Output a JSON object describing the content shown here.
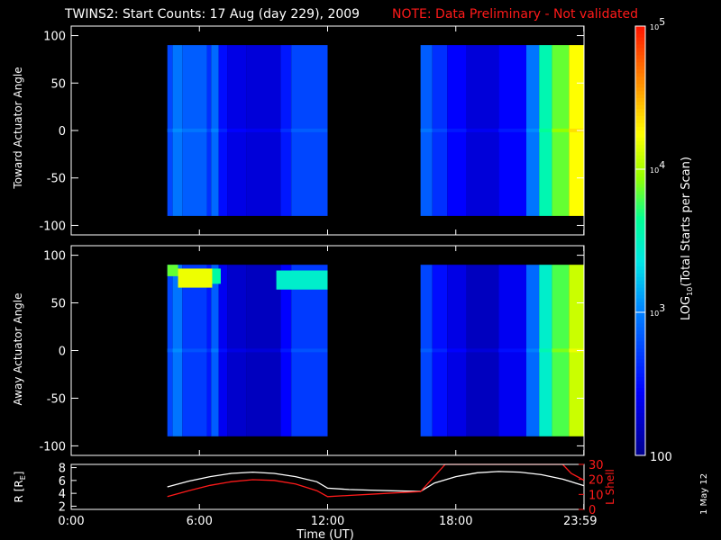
{
  "title": "TWINS2: Start Counts: 17 Aug (day 229), 2009",
  "note": "NOTE: Data Preliminary - Not validated",
  "date_stamp": "1 May 12",
  "colors": {
    "background": "#000000",
    "axes": "#ffffff",
    "note": "#ff1a1a",
    "r_line": "#ffffff",
    "lshell_line": "#ff1a1a"
  },
  "chart_data": [
    {
      "type": "heatmap",
      "ylabel": "Toward Actuator Angle",
      "ylim": [
        -110,
        110
      ],
      "xlim": [
        0,
        24
      ],
      "y_ticks": [
        "100",
        "50",
        "0",
        "-50",
        "-100"
      ],
      "y_tick_values": [
        100,
        50,
        0,
        -50,
        -100
      ],
      "angle_range": [
        -90,
        90
      ],
      "data_blocks": [
        {
          "t_start": 4.5,
          "t_end": 12.0
        },
        {
          "t_start": 16.35,
          "t_end": 23.99
        }
      ],
      "columns": [
        {
          "t0": 4.5,
          "t1": 4.75,
          "log_counts": 2.75
        },
        {
          "t0": 4.75,
          "t1": 5.2,
          "log_counts": 2.95
        },
        {
          "t0": 5.2,
          "t1": 6.35,
          "log_counts": 2.85
        },
        {
          "t0": 6.35,
          "t1": 6.55,
          "log_counts": 2.65
        },
        {
          "t0": 6.55,
          "t1": 6.9,
          "log_counts": 2.9
        },
        {
          "t0": 6.9,
          "t1": 7.3,
          "log_counts": 2.5
        },
        {
          "t0": 7.3,
          "t1": 8.2,
          "log_counts": 2.35
        },
        {
          "t0": 8.2,
          "t1": 9.8,
          "log_counts": 2.3
        },
        {
          "t0": 9.8,
          "t1": 10.3,
          "log_counts": 2.55
        },
        {
          "t0": 10.3,
          "t1": 12.0,
          "log_counts": 2.75
        },
        {
          "t0": 16.35,
          "t1": 16.9,
          "log_counts": 2.85
        },
        {
          "t0": 16.9,
          "t1": 17.6,
          "log_counts": 2.65
        },
        {
          "t0": 17.6,
          "t1": 18.5,
          "log_counts": 2.45
        },
        {
          "t0": 18.5,
          "t1": 20.0,
          "log_counts": 2.3
        },
        {
          "t0": 20.0,
          "t1": 21.3,
          "log_counts": 2.45
        },
        {
          "t0": 21.3,
          "t1": 21.9,
          "log_counts": 2.95
        },
        {
          "t0": 21.9,
          "t1": 22.5,
          "log_counts": 3.55
        },
        {
          "t0": 22.5,
          "t1": 23.3,
          "log_counts": 3.85
        },
        {
          "t0": 23.3,
          "t1": 23.99,
          "log_counts": 4.25
        }
      ]
    },
    {
      "type": "heatmap",
      "ylabel": "Away Actuator Angle",
      "ylim": [
        -110,
        110
      ],
      "xlim": [
        0,
        24
      ],
      "y_ticks": [
        "100",
        "50",
        "0",
        "-50",
        "-100"
      ],
      "y_tick_values": [
        100,
        50,
        0,
        -50,
        -100
      ],
      "angle_range": [
        -90,
        90
      ],
      "data_blocks": [
        {
          "t_start": 4.5,
          "t_end": 12.0
        },
        {
          "t_start": 16.35,
          "t_end": 23.99
        }
      ],
      "columns": [
        {
          "t0": 4.5,
          "t1": 4.75,
          "log_counts": 2.75
        },
        {
          "t0": 4.75,
          "t1": 5.2,
          "log_counts": 2.95
        },
        {
          "t0": 5.2,
          "t1": 6.35,
          "log_counts": 2.7
        },
        {
          "t0": 6.35,
          "t1": 6.55,
          "log_counts": 2.55
        },
        {
          "t0": 6.55,
          "t1": 6.9,
          "log_counts": 2.85
        },
        {
          "t0": 6.9,
          "t1": 7.3,
          "log_counts": 2.4
        },
        {
          "t0": 7.3,
          "t1": 8.2,
          "log_counts": 2.25
        },
        {
          "t0": 8.2,
          "t1": 9.8,
          "log_counts": 2.2
        },
        {
          "t0": 9.8,
          "t1": 10.3,
          "log_counts": 2.45
        },
        {
          "t0": 10.3,
          "t1": 12.0,
          "log_counts": 2.7
        },
        {
          "t0": 16.35,
          "t1": 16.9,
          "log_counts": 2.75
        },
        {
          "t0": 16.9,
          "t1": 17.6,
          "log_counts": 2.5
        },
        {
          "t0": 17.6,
          "t1": 18.5,
          "log_counts": 2.35
        },
        {
          "t0": 18.5,
          "t1": 20.0,
          "log_counts": 2.2
        },
        {
          "t0": 20.0,
          "t1": 21.3,
          "log_counts": 2.4
        },
        {
          "t0": 21.3,
          "t1": 21.9,
          "log_counts": 2.9
        },
        {
          "t0": 21.9,
          "t1": 22.5,
          "log_counts": 3.45
        },
        {
          "t0": 22.5,
          "t1": 23.3,
          "log_counts": 3.8
        },
        {
          "t0": 23.3,
          "t1": 23.99,
          "log_counts": 4.1
        }
      ],
      "hot_band": [
        {
          "t0": 4.5,
          "t1": 5.0,
          "a0": 78,
          "a1": 90,
          "log_counts": 3.85
        },
        {
          "t0": 5.0,
          "t1": 6.6,
          "a0": 66,
          "a1": 86,
          "log_counts": 4.2
        },
        {
          "t0": 6.6,
          "t1": 7.0,
          "a0": 70,
          "a1": 86,
          "log_counts": 3.6
        },
        {
          "t0": 9.6,
          "t1": 12.0,
          "a0": 64,
          "a1": 84,
          "log_counts": 3.45
        }
      ]
    },
    {
      "type": "line",
      "ylabel_left": "R [R",
      "ylabel_left_sub": "E",
      "ylabel_left_close": "]",
      "ylabel_right": "L Shell",
      "xlabel": "Time (UT)",
      "xlim": [
        0,
        24
      ],
      "ylim_left": [
        1.5,
        8.5
      ],
      "ylim_right": [
        0,
        30
      ],
      "left_ticks": [
        "8",
        "6",
        "4",
        "2"
      ],
      "left_tick_values": [
        8,
        6,
        4,
        2
      ],
      "right_ticks": [
        "30",
        "20",
        "10",
        "0"
      ],
      "right_tick_values": [
        30,
        20,
        10,
        0
      ],
      "x_ticks": [
        "0:00",
        "6:00",
        "12:00",
        "18:00",
        "23:59"
      ],
      "x_tick_values": [
        0,
        6,
        12,
        18,
        23.99
      ],
      "series": [
        {
          "axis": "left",
          "x": [
            4.5,
            5.5,
            6.5,
            7.5,
            8.5,
            9.5,
            10.5,
            11.5,
            12.0,
            13.0,
            14.0,
            15.0,
            16.35,
            17.0,
            18.0,
            19.0,
            20.0,
            21.0,
            22.0,
            23.0,
            23.99
          ],
          "y": [
            5.0,
            5.9,
            6.6,
            7.1,
            7.3,
            7.1,
            6.6,
            5.8,
            4.8,
            4.6,
            4.5,
            4.4,
            4.3,
            5.6,
            6.6,
            7.2,
            7.4,
            7.3,
            6.9,
            6.2,
            5.2
          ]
        },
        {
          "axis": "right",
          "x": [
            4.5,
            5.5,
            6.5,
            7.5,
            8.5,
            9.5,
            10.5,
            11.5,
            12.0,
            13.0,
            14.0,
            15.0,
            16.35,
            17.0,
            17.5,
            23.0,
            23.4,
            23.99
          ],
          "y": [
            8.5,
            12.5,
            16.0,
            18.5,
            19.8,
            19.3,
            17.0,
            12.5,
            8.5,
            9.3,
            10.1,
            10.9,
            11.8,
            22.0,
            30.0,
            30.0,
            24.0,
            19.5
          ]
        }
      ]
    }
  ],
  "colorbar": {
    "label": "LOG",
    "label_sub": "10",
    "label_tail": "(Total Starts per Scan)",
    "ticks": [
      {
        "log": 5,
        "base": "10",
        "exp": "5"
      },
      {
        "log": 4,
        "base": "10",
        "exp": "4"
      },
      {
        "log": 3,
        "base": "10",
        "exp": "3"
      },
      {
        "log": 2,
        "base": "100",
        "exp": ""
      }
    ],
    "range_log": [
      2,
      5
    ]
  }
}
